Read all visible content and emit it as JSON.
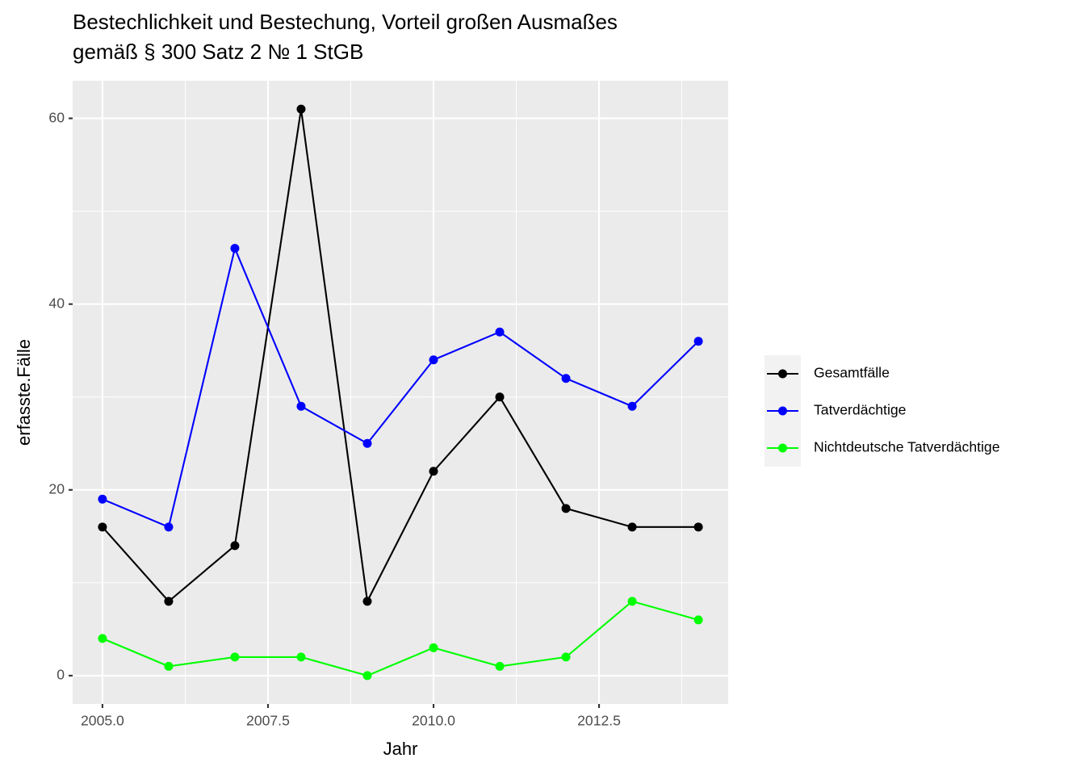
{
  "chart_data": {
    "type": "line",
    "title": [
      "Bestechlichkeit und Bestechung, Vorteil großen Ausmaßes",
      "gemäß § 300 Satz 2 № 1 StGB"
    ],
    "x_label": "Jahr",
    "y_label": "erfasste.Fälle",
    "x": [
      2005,
      2006,
      2007,
      2008,
      2009,
      2010,
      2011,
      2012,
      2013,
      2014
    ],
    "series": [
      {
        "name": "Gesamtfälle",
        "color": "#000000",
        "values": [
          16,
          8,
          14,
          61,
          8,
          22,
          30,
          18,
          16,
          16
        ]
      },
      {
        "name": "Tatverdächtige",
        "color": "#0000ff",
        "values": [
          19,
          16,
          46,
          29,
          25,
          34,
          37,
          32,
          29,
          36
        ]
      },
      {
        "name": "Nichtdeutsche Tatverdächtige",
        "color": "#00ff00",
        "values": [
          4,
          1,
          2,
          2,
          0,
          3,
          1,
          2,
          8,
          6
        ]
      }
    ],
    "xlim": [
      2004.55,
      2014.45
    ],
    "xticks": [
      {
        "value": 2005,
        "label": "2005.0"
      },
      {
        "value": 2007.5,
        "label": "2007.5"
      },
      {
        "value": 2010,
        "label": "2010.0"
      },
      {
        "value": 2012.5,
        "label": "2012.5"
      }
    ],
    "x_minor_ticks": [
      2006.25,
      2008.75,
      2011.25,
      2013.75
    ],
    "ylim": [
      -3.05,
      64.05
    ],
    "yticks": [
      0,
      20,
      40,
      60
    ],
    "y_minor_ticks": [
      10,
      30,
      50
    ],
    "grid": true,
    "legend": "right"
  }
}
